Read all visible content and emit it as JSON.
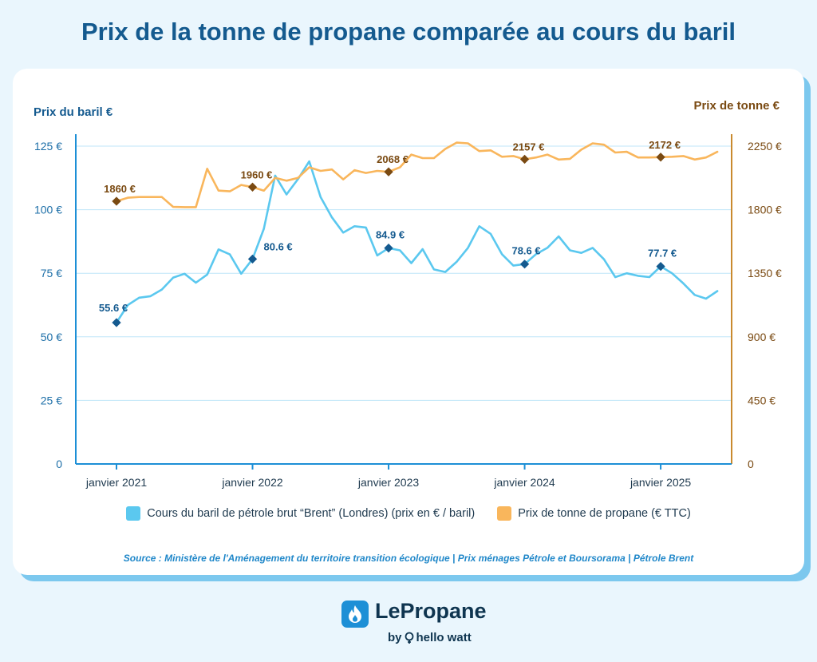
{
  "title": "Prix de la tonne de propane comparée au cours du baril",
  "colors": {
    "brent": "#5bc8ef",
    "propane": "#f9b65c",
    "brent_marker": "#145a8f",
    "propane_marker": "#7a4a12",
    "axis_left": "#1d8fd6",
    "axis_right": "#c98a2e"
  },
  "chart_data": {
    "type": "line",
    "title": "Prix de la tonne de propane comparée au cours du baril",
    "ylabel_left": "Prix du baril €",
    "ylabel_right": "Prix de tonne €",
    "ylim_left": [
      0,
      125
    ],
    "ylim_right": [
      0,
      2250
    ],
    "yticks_left": [
      0,
      25,
      50,
      75,
      100,
      125
    ],
    "yticks_left_labels": [
      "0",
      "25 €",
      "50 €",
      "75 €",
      "100 €",
      "125 €"
    ],
    "yticks_right": [
      0,
      450,
      900,
      1350,
      1800,
      2250
    ],
    "yticks_right_labels": [
      "0",
      "450 €",
      "900 €",
      "1350 €",
      "1800 €",
      "2250 €"
    ],
    "xlim": [
      0,
      53
    ],
    "xticks": [
      0,
      12,
      24,
      36,
      48
    ],
    "xtick_labels": [
      "janvier 2021",
      "janvier 2022",
      "janvier 2023",
      "janvier 2024",
      "janvier 2025"
    ],
    "grid": true,
    "series": [
      {
        "name": "Cours du baril de pétrole brut “Brent” (Londres) (prix en € / baril)",
        "axis": "left",
        "values": [
          55.6,
          62.5,
          65.4,
          66.0,
          68.6,
          73.3,
          74.8,
          71.3,
          74.5,
          84.4,
          82.4,
          74.8,
          80.6,
          92.5,
          113.4,
          106.0,
          112.0,
          119.0,
          105.0,
          97.0,
          91.0,
          93.5,
          93.0,
          82.0,
          84.9,
          84.0,
          79.0,
          84.5,
          76.5,
          75.5,
          79.5,
          85.0,
          93.5,
          90.5,
          82.5,
          78.0,
          78.6,
          82.5,
          85.0,
          89.5,
          84.0,
          83.0,
          85.0,
          80.5,
          73.5,
          75.0,
          74.0,
          73.5,
          77.7,
          75.0,
          71.0,
          66.5,
          65.0,
          68.0
        ],
        "markers": [
          {
            "x": 0,
            "y": 55.6,
            "label": "55.6 €"
          },
          {
            "x": 12,
            "y": 80.6,
            "label": "80.6 €"
          },
          {
            "x": 24,
            "y": 84.9,
            "label": "84.9 €"
          },
          {
            "x": 36,
            "y": 78.6,
            "label": "78.6 €"
          },
          {
            "x": 48,
            "y": 77.7,
            "label": "77.7 €"
          }
        ]
      },
      {
        "name": "Prix de tonne de propane (€ TTC)",
        "axis": "right",
        "values": [
          1860,
          1885,
          1890,
          1890,
          1890,
          1820,
          1818,
          1818,
          2090,
          1935,
          1930,
          1975,
          1960,
          1935,
          2025,
          2005,
          2025,
          2100,
          2075,
          2085,
          2015,
          2080,
          2060,
          2075,
          2068,
          2100,
          2190,
          2165,
          2165,
          2230,
          2275,
          2270,
          2215,
          2220,
          2175,
          2180,
          2157,
          2170,
          2190,
          2155,
          2160,
          2225,
          2270,
          2260,
          2205,
          2210,
          2170,
          2170,
          2172,
          2175,
          2180,
          2155,
          2170,
          2210
        ],
        "markers": [
          {
            "x": 0,
            "y": 1860,
            "label": "1860 €"
          },
          {
            "x": 12,
            "y": 1960,
            "label": "1960 €"
          },
          {
            "x": 24,
            "y": 2068,
            "label": "2068 €"
          },
          {
            "x": 36,
            "y": 2157,
            "label": "2157 €"
          },
          {
            "x": 48,
            "y": 2172,
            "label": "2172 €"
          }
        ]
      }
    ]
  },
  "legend": {
    "brent_label": "Cours du baril de pétrole brut “Brent” (Londres) (prix en € / baril)",
    "propane_label": "Prix de tonne de propane (€ TTC)"
  },
  "source": "Source : Ministère de l'Aménagement du territoire transition écologique | Prix ménages Pétrole et Boursorama | Pétrole Brent",
  "brand": {
    "icon": "flame-icon",
    "name": "LePropane",
    "by": "by",
    "partner_icon": "lightbulb-icon",
    "partner": "hello watt"
  }
}
